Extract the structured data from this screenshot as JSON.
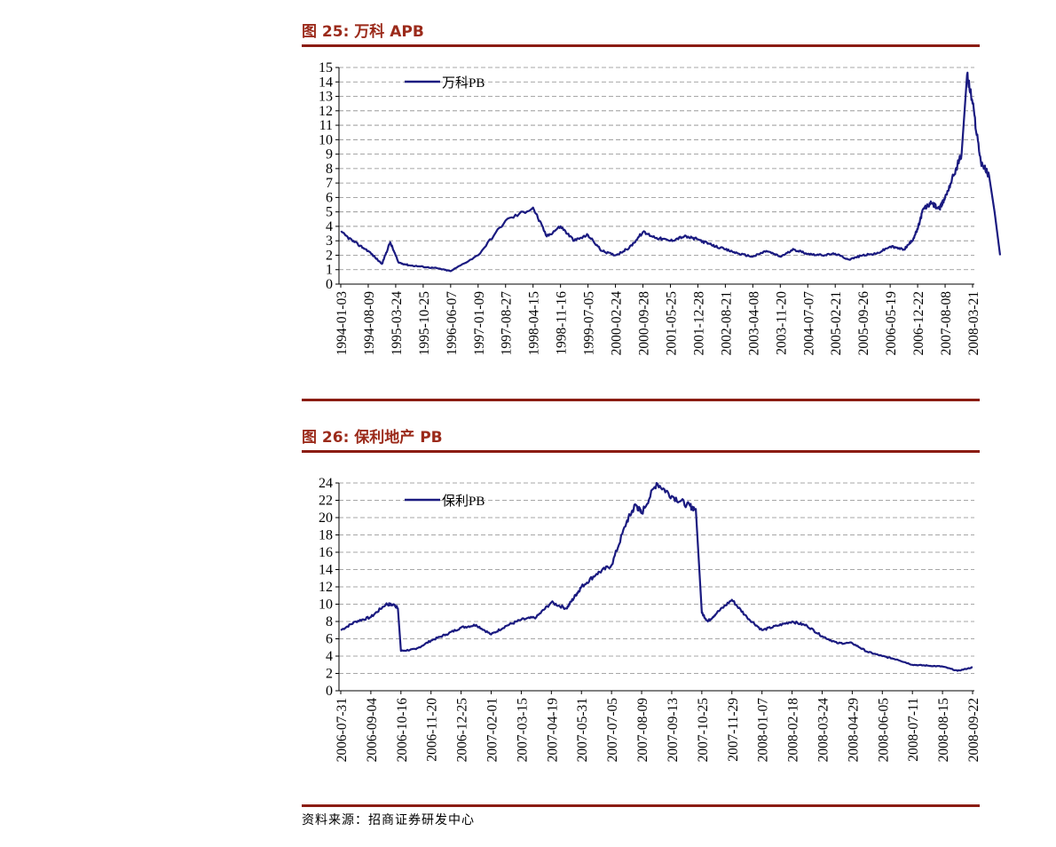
{
  "figure1": {
    "title": "图 25: 万科 APB",
    "chart_data": {
      "type": "line",
      "title": "万科 APB",
      "ylim": [
        0,
        15
      ],
      "yticks": [
        "0",
        "1",
        "2",
        "3",
        "4",
        "5",
        "6",
        "7",
        "8",
        "9",
        "10",
        "11",
        "12",
        "13",
        "14",
        "15"
      ],
      "x_tick_labels": [
        "1994-01-03",
        "1994-08-09",
        "1995-03-24",
        "1995-10-25",
        "1996-06-07",
        "1997-01-09",
        "1997-08-27",
        "1998-04-15",
        "1998-11-16",
        "1999-07-05",
        "2000-02-24",
        "2000-09-28",
        "2001-05-25",
        "2001-12-28",
        "2002-08-21",
        "2003-04-08",
        "2003-11-20",
        "2004-07-07",
        "2005-02-21",
        "2005-09-26",
        "2006-05-19",
        "2006-12-22",
        "2007-08-08",
        "2008-03-21"
      ],
      "series": [
        {
          "name": "万科PB",
          "color": "#1a1a80",
          "x": [
            0,
            0.5,
            1,
            1.5,
            1.8,
            2.1,
            2.5,
            3,
            3.5,
            4,
            5,
            6,
            7,
            7.5,
            8,
            8.5,
            9,
            9.5,
            10,
            10.5,
            11,
            11.5,
            12,
            12.5,
            13,
            13.5,
            14,
            14.5,
            15,
            15.5,
            16,
            16.5,
            17,
            17.5,
            18,
            18.5,
            19,
            19.5,
            20,
            20.5,
            20.8,
            21,
            21.2,
            21.5,
            21.8,
            22,
            22.3,
            22.6,
            22.8,
            23,
            23.3,
            23.6,
            23.8,
            24
          ],
          "values": [
            3.6,
            2.9,
            2.3,
            1.4,
            2.9,
            1.5,
            1.3,
            1.2,
            1.1,
            0.9,
            2.0,
            4.4,
            5.3,
            3.3,
            4.0,
            3.0,
            3.4,
            2.3,
            2.0,
            2.5,
            3.6,
            3.2,
            3.0,
            3.3,
            3.1,
            2.7,
            2.4,
            2.1,
            1.9,
            2.3,
            1.9,
            2.4,
            2.1,
            2.0,
            2.1,
            1.7,
            2.0,
            2.1,
            2.6,
            2.4,
            3.0,
            3.8,
            5.2,
            5.6,
            5.2,
            6.0,
            7.5,
            9.0,
            14.5,
            12.5,
            8.5,
            7.5,
            5.0,
            2.0
          ]
        }
      ]
    }
  },
  "figure2": {
    "title": "图 26: 保利地产 PB",
    "chart_data": {
      "type": "line",
      "title": "保利地产 PB",
      "ylim": [
        0,
        24
      ],
      "yticks": [
        "0",
        "2",
        "4",
        "6",
        "8",
        "10",
        "12",
        "14",
        "16",
        "18",
        "20",
        "22",
        "24"
      ],
      "x_tick_labels": [
        "2006-07-31",
        "2006-09-04",
        "2006-10-16",
        "2006-11-20",
        "2006-12-25",
        "2007-02-01",
        "2007-03-15",
        "2007-04-19",
        "2007-05-31",
        "2007-07-05",
        "2007-08-09",
        "2007-09-13",
        "2007-10-25",
        "2007-11-29",
        "2008-01-07",
        "2008-02-18",
        "2008-03-24",
        "2008-04-29",
        "2008-06-05",
        "2008-07-11",
        "2008-08-15",
        "2008-09-22"
      ],
      "series": [
        {
          "name": "保利PB",
          "color": "#1a1a80",
          "x": [
            0,
            0.5,
            1,
            1.5,
            1.8,
            1.9,
            2,
            2.5,
            3,
            3.5,
            4,
            4.5,
            5,
            5.5,
            6,
            6.5,
            7,
            7.5,
            7.8,
            8,
            8.5,
            9,
            9.5,
            9.8,
            10,
            10.5,
            11,
            11.5,
            11.8,
            12,
            12.2,
            12.5,
            13,
            13.5,
            14,
            14.5,
            15,
            15.5,
            16,
            16.5,
            17,
            17.5,
            18,
            18.5,
            19,
            19.5,
            20,
            20.5,
            21
          ],
          "values": [
            7.0,
            8.0,
            8.5,
            10.0,
            9.9,
            9.5,
            4.6,
            4.8,
            5.8,
            6.5,
            7.3,
            7.6,
            6.5,
            7.5,
            8.2,
            8.5,
            10.2,
            9.5,
            11.0,
            12.0,
            13.5,
            14.5,
            19.5,
            21.5,
            20.5,
            24.0,
            22.5,
            21.5,
            21.0,
            9.0,
            8.0,
            9.0,
            10.5,
            8.5,
            7.0,
            7.5,
            8.0,
            7.5,
            6.3,
            5.5,
            5.5,
            4.5,
            4.0,
            3.6,
            3.0,
            2.9,
            2.8,
            2.3,
            2.7
          ]
        }
      ]
    }
  },
  "source": "资料来源：招商证券研发中心"
}
